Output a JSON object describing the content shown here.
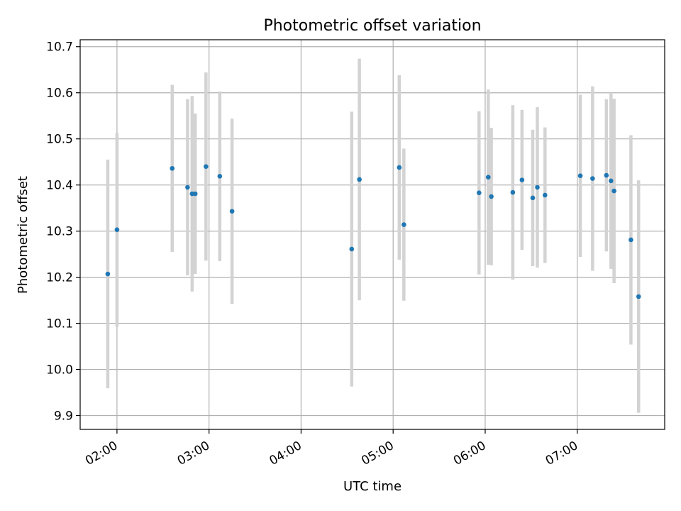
{
  "chart_data": {
    "type": "scatter",
    "title": "Photometric offset variation",
    "xlabel": "UTC time",
    "ylabel": "Photometric offset",
    "xlim": [
      "01:36",
      "07:57"
    ],
    "ylim": [
      9.87,
      10.715
    ],
    "grid": true,
    "x_ticks": [
      "02:00",
      "03:00",
      "04:00",
      "05:00",
      "06:00",
      "07:00"
    ],
    "y_ticks": [
      "9.9",
      "10.0",
      "10.1",
      "10.2",
      "10.3",
      "10.4",
      "10.5",
      "10.6",
      "10.7"
    ],
    "points": [
      {
        "x": "01:54",
        "y": 10.207,
        "err": 0.248
      },
      {
        "x": "02:00",
        "y": 10.303,
        "err": 0.21
      },
      {
        "x": "02:36",
        "y": 10.436,
        "err": 0.181
      },
      {
        "x": "02:46",
        "y": 10.395,
        "err": 0.191
      },
      {
        "x": "02:49",
        "y": 10.381,
        "err": 0.212
      },
      {
        "x": "02:51",
        "y": 10.381,
        "err": 0.174
      },
      {
        "x": "02:58",
        "y": 10.44,
        "err": 0.204
      },
      {
        "x": "03:07",
        "y": 10.419,
        "err": 0.184
      },
      {
        "x": "03:15",
        "y": 10.343,
        "err": 0.201
      },
      {
        "x": "04:33",
        "y": 10.261,
        "err": 0.298
      },
      {
        "x": "04:38",
        "y": 10.412,
        "err": 0.262
      },
      {
        "x": "05:04",
        "y": 10.438,
        "err": 0.2
      },
      {
        "x": "05:07",
        "y": 10.314,
        "err": 0.165
      },
      {
        "x": "05:56",
        "y": 10.383,
        "err": 0.177
      },
      {
        "x": "06:02",
        "y": 10.417,
        "err": 0.19
      },
      {
        "x": "06:04",
        "y": 10.375,
        "err": 0.149
      },
      {
        "x": "06:18",
        "y": 10.384,
        "err": 0.189
      },
      {
        "x": "06:24",
        "y": 10.411,
        "err": 0.152
      },
      {
        "x": "06:31",
        "y": 10.372,
        "err": 0.148
      },
      {
        "x": "06:34",
        "y": 10.395,
        "err": 0.174
      },
      {
        "x": "06:39",
        "y": 10.378,
        "err": 0.147
      },
      {
        "x": "07:02",
        "y": 10.42,
        "err": 0.176
      },
      {
        "x": "07:10",
        "y": 10.414,
        "err": 0.2
      },
      {
        "x": "07:19",
        "y": 10.421,
        "err": 0.165
      },
      {
        "x": "07:22",
        "y": 10.409,
        "err": 0.191
      },
      {
        "x": "07:24",
        "y": 10.387,
        "err": 0.2
      },
      {
        "x": "07:35",
        "y": 10.281,
        "err": 0.227
      },
      {
        "x": "07:40",
        "y": 10.158,
        "err": 0.252
      }
    ],
    "colors": {
      "points": "#1f77b4",
      "error_bars": "#d3d3d3",
      "grid": "#b0b0b0",
      "axes": "#000000"
    }
  }
}
